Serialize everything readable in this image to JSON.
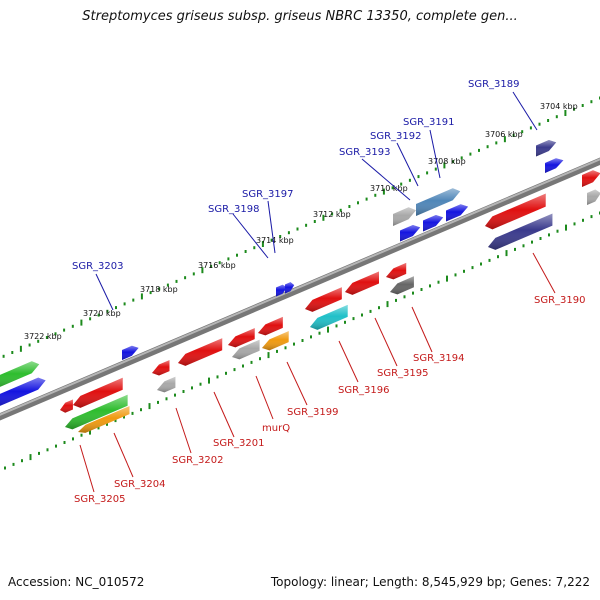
{
  "title": "Streptomyces griseus subsp. griseus NBRC 13350, complete gen...",
  "accession": "Accession: NC_010572",
  "topology": "Topology: linear; Length: 8,545,929 bp; Genes: 7,222",
  "colors": {
    "red": "#e01010",
    "blue": "#1414e0",
    "navy": "#3a3a8c",
    "green": "#2ebd2e",
    "grey": "#a8a8a8",
    "darkgrey": "#666666",
    "cyan": "#20c0c8",
    "orange": "#f09a10",
    "steel": "#4f86b8",
    "top_label": "#1a1aa6",
    "bottom_label": "#c41a1a",
    "ruler_tick": "#1c8a1c",
    "backbone": "#8a8a8a"
  },
  "kbp_labels": [
    "3704 kbp",
    "3706 kbp",
    "3708 kbp",
    "3710 kbp",
    "3712 kbp",
    "3714 kbp",
    "3716 kbp",
    "3718 kbp",
    "3720 kbp",
    "3722 kbp"
  ],
  "top_genes": [
    "SGR_3189",
    "SGR_3191",
    "SGR_3192",
    "SGR_3193",
    "SGR_3197",
    "SGR_3198",
    "SGR_3203"
  ],
  "bottom_genes": [
    "SGR_3190",
    "SGR_3194",
    "SGR_3195",
    "SGR_3196",
    "SGR_3199",
    "murQ",
    "SGR_3201",
    "SGR_3202",
    "SGR_3204",
    "SGR_3205"
  ]
}
